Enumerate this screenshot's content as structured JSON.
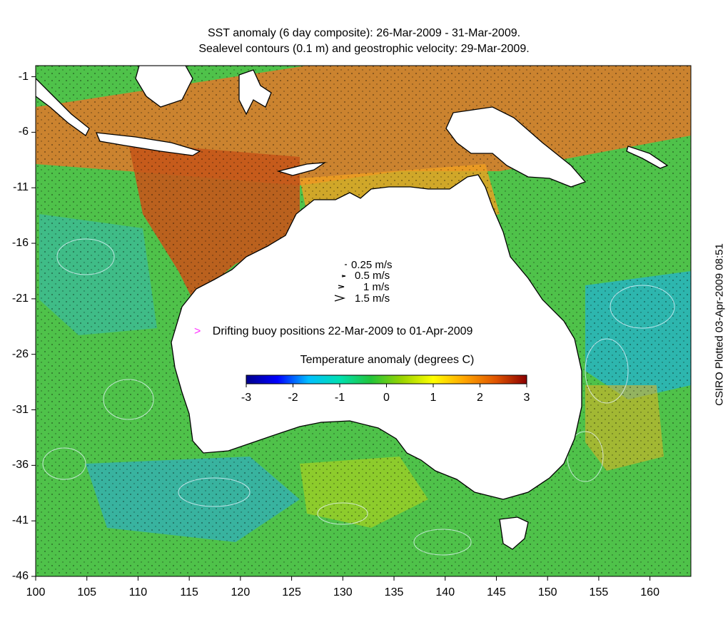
{
  "title_line1": "SST anomaly (6 day composite): 26-Mar-2009 - 31-Mar-2009.",
  "title_line2": "Sealevel contours (0.1 m) and geostrophic velocity: 29-Mar-2009.",
  "credit": "CSIRO Plotted 03-Apr-2009 08:51",
  "axes": {
    "x_ticks": [
      "100",
      "105",
      "110",
      "115",
      "120",
      "125",
      "130",
      "135",
      "140",
      "145",
      "150",
      "155",
      "160"
    ],
    "y_ticks": [
      "-1",
      "-6",
      "-11",
      "-16",
      "-21",
      "-26",
      "-31",
      "-36",
      "-41",
      "-46"
    ],
    "x_range": [
      100,
      164
    ],
    "y_range": [
      -46,
      0
    ]
  },
  "velocity_legend": [
    {
      "label": "0.25 m/s",
      "speed": 0.25
    },
    {
      "label": "0.5 m/s",
      "speed": 0.5
    },
    {
      "label": "1 m/s",
      "speed": 1
    },
    {
      "label": "1.5 m/s",
      "speed": 1.5
    }
  ],
  "buoy_legend": {
    "symbol": ">",
    "label": "Drifting buoy positions 22-Mar-2009 to 01-Apr-2009",
    "color": "#ff33ff"
  },
  "colorbar": {
    "title": "Temperature anomaly (degrees C)",
    "ticks": [
      "-3",
      "-2",
      "-1",
      "0",
      "1",
      "2",
      "3"
    ],
    "range": [
      -3,
      3
    ],
    "colors": [
      "#00008b",
      "#0000ff",
      "#00bfff",
      "#00e0b0",
      "#22c43a",
      "#9ad400",
      "#ffff00",
      "#ffa500",
      "#e05500",
      "#8b0000"
    ]
  },
  "colors": {
    "ocean_background": "#4fc24a",
    "land": "#ffffff",
    "coastline": "#000000",
    "contours": "#e8f4ff"
  },
  "map_layers": {
    "anomaly_zones": [
      {
        "name": "north-warm-band",
        "anomaly": 2.2,
        "color": "#e0782a"
      },
      {
        "name": "nw-shelf-warm",
        "anomaly": 2.5,
        "color": "#c5561a"
      },
      {
        "name": "arafura-warm",
        "anomaly": 1.8,
        "color": "#f0a020"
      },
      {
        "name": "east-cool-eddy",
        "anomaly": -1.3,
        "color": "#20b0d8"
      },
      {
        "name": "southwest-cool",
        "anomaly": -1.2,
        "color": "#2aa8d8"
      },
      {
        "name": "west-indian-cool",
        "anomaly": -0.9,
        "color": "#35b8b0"
      },
      {
        "name": "tasman-warm",
        "anomaly": 1.5,
        "color": "#e8b020"
      }
    ],
    "landmasses": [
      "Australia",
      "Tasmania",
      "New Guinea",
      "Sumatra",
      "Java",
      "Borneo",
      "Sulawesi",
      "Timor",
      "Solomon Islands"
    ]
  }
}
